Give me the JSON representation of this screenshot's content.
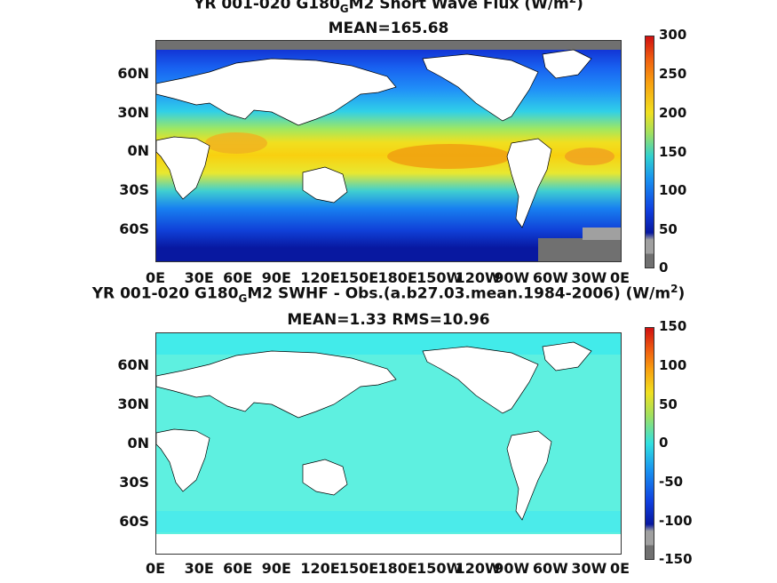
{
  "chart_data": [
    {
      "type": "heatmap",
      "title_prefix": "YR 001-020 G180",
      "title_sub": "G",
      "title_suffix": "M2  Short Wave Flux (W/m",
      "title_sup": "2",
      "title_close": ")",
      "subtitle": "MEAN=165.68",
      "ytick_labels": [
        "60N",
        "30N",
        "0N",
        "30S",
        "60S"
      ],
      "xtick_labels": [
        "0E",
        "30E",
        "60E",
        "90E",
        "120E",
        "150E",
        "180E",
        "150W",
        "120W",
        "90W",
        "60W",
        "30W",
        "0E"
      ],
      "colorbar_labels": [
        "300",
        "250",
        "200",
        "150",
        "100",
        "50",
        "0"
      ],
      "colorbar_range": [
        0,
        300
      ],
      "mean": 165.68
    },
    {
      "type": "heatmap",
      "title_prefix": "YR 001-020 G180",
      "title_sub": "G",
      "title_suffix": "M2 SWHF - Obs.(a.b27.03.mean.1984-2006) (W/m",
      "title_sup": "2",
      "title_close": ")",
      "subtitle": "MEAN=1.33 RMS=10.96",
      "ytick_labels": [
        "60N",
        "30N",
        "0N",
        "30S",
        "60S"
      ],
      "xtick_labels": [
        "0E",
        "30E",
        "60E",
        "90E",
        "120E",
        "150E",
        "180E",
        "150W",
        "120W",
        "90W",
        "60W",
        "30W",
        "0E"
      ],
      "colorbar_labels": [
        "150",
        "100",
        "50",
        "0",
        "-50",
        "-100",
        "-150"
      ],
      "colorbar_range": [
        -150,
        150
      ],
      "mean": 1.33,
      "rms": 10.96
    }
  ],
  "colors": {
    "land": "#ffffff",
    "missing": "#707070",
    "ocean_anomaly": "#5ef0e0"
  }
}
